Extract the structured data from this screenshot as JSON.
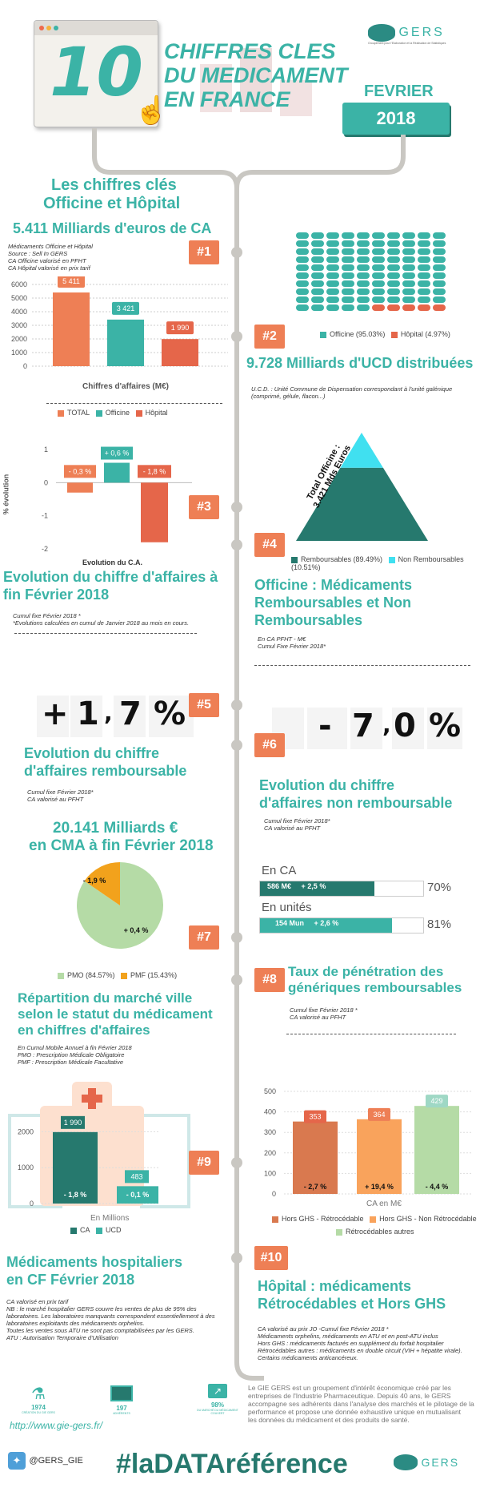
{
  "header": {
    "number": "10",
    "title_line1": "CHIFFRES CLES",
    "title_line2": "DU MEDICAMENT",
    "title_line3": "EN FRANCE",
    "month": "FEVRIER",
    "year": "2018",
    "logo": "GERS",
    "logo_sub": "Groupement pour l'Elaboration et la Réalisation de Statistiques"
  },
  "section1": {
    "badge": "#1",
    "heading_line1": "Les chiffres clés",
    "heading_line2": "Officine et Hôpital",
    "kpi": "5.411 Milliards d'euros de CA",
    "note1": "Médicaments Officine et Hôpital",
    "note2": "Source : Sell In GERS",
    "note3": "CA Officine valorisé en PFHT",
    "note4": "CA Hôpital valorisé en prix tarif",
    "xlabel": "Chiffres d'affaires (M€)",
    "legend": [
      "TOTAL",
      "Officine",
      "Hôpital"
    ]
  },
  "section2": {
    "badge": "#2",
    "kpi": "9.728 Milliards d'UCD distribuées",
    "note": "U.C.D. : Unité Commune de Dispensation correspondant à l'unité galénique (comprimé, gélule, flacon...)",
    "legend": [
      "Officine (95.03%)",
      "Hôpital (4.97%)"
    ]
  },
  "section3": {
    "badge": "#3",
    "heading_line1": "Evolution du chiffre d'affaires à",
    "heading_line2": "fin Février 2018",
    "note1": "Cumul fixe Février 2018 *",
    "note2": "*Evolutions calculées en cumul de Janvier 2018 au mois en cours.",
    "ylabel": "% évolution",
    "xlabel": "Evolution du C.A."
  },
  "section4": {
    "badge": "#4",
    "triangle_line1": "Total Officine :",
    "triangle_line2": "3.421 Mds Euros",
    "heading_line1": "Officine : Médicaments",
    "heading_line2": "Remboursables et Non",
    "heading_line3": "Remboursables",
    "note1": "En CA PFHT - M€",
    "note2": "Cumul Fixe Février 2018*",
    "legend": [
      "Remboursables (89.49%)",
      "Non Remboursables (10.51%)"
    ]
  },
  "section5": {
    "badge": "#5",
    "sign": "+",
    "d1": "1",
    "comma": ",",
    "d2": "7",
    "pct": "%",
    "heading_line1": "Evolution du chiffre",
    "heading_line2": "d'affaires remboursable",
    "note1": "Cumul fixe Février 2018*",
    "note2": "CA valorisé au PFHT"
  },
  "section6": {
    "badge": "#6",
    "sign": "-",
    "d1": "7",
    "comma": ",",
    "d2": "0",
    "pct": "%",
    "heading_line1": "Evolution du chiffre",
    "heading_line2": "d'affaires non remboursable",
    "note1": "Cumul fixe Février 2018*",
    "note2": "CA valorisé au PFHT"
  },
  "section7": {
    "badge": "#7",
    "kpi_line1": "20.141 Milliards €",
    "kpi_line2": "en CMA à fin Février 2018",
    "legend": [
      "PMO (84.57%)",
      "PMF (15.43%)"
    ],
    "heading_line1": "Répartition du marché ville",
    "heading_line2": "selon le statut du médicament",
    "heading_line3": "en chiffres d'affaires",
    "note1": "En Cumul Mobile Annuel à fin Février 2018",
    "note2": "PMO : Prescription Médicale Obligatoire",
    "note3": "PMF : Prescription Médicale Facultative"
  },
  "section8": {
    "badge": "#8",
    "ca_label": "En CA",
    "ca_bar_text1": "586 M€",
    "ca_bar_text2": "+ 2,5 %",
    "ca_pct_text": "70%",
    "units_label": "En unités",
    "units_bar_text1": "154  Mun",
    "units_bar_text2": "+ 2,6 %",
    "units_pct_text": "81%",
    "heading_line1": "Taux de pénétration des",
    "heading_line2": "génériques remboursables",
    "note1": "Cumul fixe Février 2018 *",
    "note2": "CA valorisé au PFHT"
  },
  "section9": {
    "badge": "#9",
    "xlabel": "En Millions",
    "legend": [
      "CA",
      "UCD"
    ],
    "heading_line1": "Médicaments hospitaliers",
    "heading_line2": "en CF Février 2018",
    "note1": "CA valorisé en prix tarif",
    "note2": "NB : le marché hospitalier GERS couvre les ventes de plus de 95% des",
    "note3": "laboratoires. Les laboratoires manquants correspondent essentiellement à des",
    "note4": "laboratoires exploitants des médicaments orphelins.",
    "note5": "Toutes les ventes sous ATU ne sont pas comptabilisées par les GERS.",
    "note6": "ATU : Autorisation Temporaire d'Utilisation"
  },
  "section10": {
    "badge": "#10",
    "xlabel": "CA en M€",
    "legend": [
      "Hors GHS - Rétrocédable",
      "Hors GHS - Non Rétrocédable",
      "Rétrocédables autres"
    ],
    "heading_line1": "Hôpital : médicaments",
    "heading_line2": "Rétrocédables et Hors GHS",
    "note1": "CA valorisé au prix JO -Cumul fixe  Février 2018 *",
    "note2": "Médicaments orphelins, médicaments en ATU et en post-ATU inclus",
    "note3": "Hors GHS : médicaments facturés en supplément du forfait hospitalier",
    "note4": "Rétrocédables autres : médicaments en double circuit (VIH + hépatite virale).",
    "note5": "Certains médicaments anticancéreux."
  },
  "footer": {
    "stat1_value": "1974",
    "stat1_label": "CRÉATION DU GIE GERS",
    "stat2_value": "197",
    "stat2_label": "ADHÉRENTS",
    "stat3_value": "98%",
    "stat3_label": "DU MARCHÉ DU MÉDICAMENT COUVERT",
    "url": "http://www.gie-gers.fr/",
    "about_line1": "Le GIE GERS est un groupement d'intérêt économique créé par les",
    "about_line2": "entreprises de l'Industrie Pharmaceutique. Depuis 40 ans, le GERS",
    "about_line3": "accompagne ses adhérents dans l'analyse des marchés et le pilotage de la",
    "about_line4": "performance et propose une donnée exhaustive unique en mutualisant",
    "about_line5": "les données du médicament et des produits de santé.",
    "twitter": "@GERS_GIE",
    "hashtag": "#laDATAréférence",
    "logo": "GERS"
  },
  "colors": {
    "teal": "#3bb3a6",
    "dark_teal": "#26796e",
    "orange": "#ee7f55",
    "light_orange": "#f9a35c",
    "red_orange": "#e5664a",
    "light_green": "#b5dba6",
    "amber": "#f2a21c",
    "cyan": "#40e0f0",
    "light_teal": "#9fd8c5"
  },
  "chart_data": [
    {
      "id": "ca_bar",
      "type": "bar",
      "categories": [
        "TOTAL",
        "Officine",
        "Hôpital"
      ],
      "values": [
        5411,
        3421,
        1990
      ],
      "value_labels": [
        "5 411",
        "3 421",
        "1 990"
      ],
      "ylim": [
        0,
        6000
      ],
      "yticks": [
        0,
        1000,
        2000,
        3000,
        4000,
        5000,
        6000
      ],
      "xlabel": "Chiffres d'affaires (M€)"
    },
    {
      "id": "ucd_waffle",
      "type": "waffle",
      "categories": [
        "Officine",
        "Hôpital"
      ],
      "values": [
        95.03,
        4.97
      ],
      "total_icons": 100
    },
    {
      "id": "evolution_bar",
      "type": "bar",
      "categories": [
        "TOTAL",
        "Officine",
        "Hôpital"
      ],
      "values": [
        -0.3,
        0.6,
        -1.8
      ],
      "value_labels": [
        "- 0,3 %",
        "+ 0,6 %",
        "- 1,8 %"
      ],
      "ylim": [
        -2,
        1
      ],
      "yticks": [
        1,
        0,
        -1,
        -2
      ],
      "ylabel": "% évolution",
      "xlabel": "Evolution du C.A."
    },
    {
      "id": "officine_triangle",
      "type": "pie",
      "categories": [
        "Remboursables",
        "Non Remboursables"
      ],
      "values": [
        89.49,
        10.51
      ]
    },
    {
      "id": "pmo_pmf_pie",
      "type": "pie",
      "categories": [
        "PMO",
        "PMF"
      ],
      "values": [
        84.57,
        15.43
      ],
      "slice_labels": [
        "+ 0,4 %",
        "- 1,9 %"
      ]
    },
    {
      "id": "generiques",
      "type": "bar",
      "categories": [
        "En CA",
        "En unités"
      ],
      "values": [
        70,
        81
      ]
    },
    {
      "id": "hospital_bar",
      "type": "bar",
      "categories": [
        "CA",
        "UCD"
      ],
      "values": [
        1990,
        483
      ],
      "value_labels": [
        "1 990",
        "483"
      ],
      "evolution_labels": [
        "- 1,8 %",
        "- 0,1 %"
      ],
      "ylim": [
        0,
        2500
      ],
      "yticks": [
        0,
        1000,
        2000
      ],
      "xlabel": "En Millions"
    },
    {
      "id": "retro_bar",
      "type": "bar",
      "categories": [
        "Hors GHS - Rétrocédable",
        "Hors GHS - Non Rétrocédable",
        "Rétrocédables autres"
      ],
      "values": [
        353,
        364,
        429
      ],
      "value_labels": [
        "353",
        "364",
        "429"
      ],
      "evolution_labels": [
        "- 2,7 %",
        "+ 19,4 %",
        "- 4,4 %"
      ],
      "ylim": [
        0,
        500
      ],
      "yticks": [
        0,
        100,
        200,
        300,
        400,
        500
      ],
      "xlabel": "CA en M€"
    }
  ]
}
